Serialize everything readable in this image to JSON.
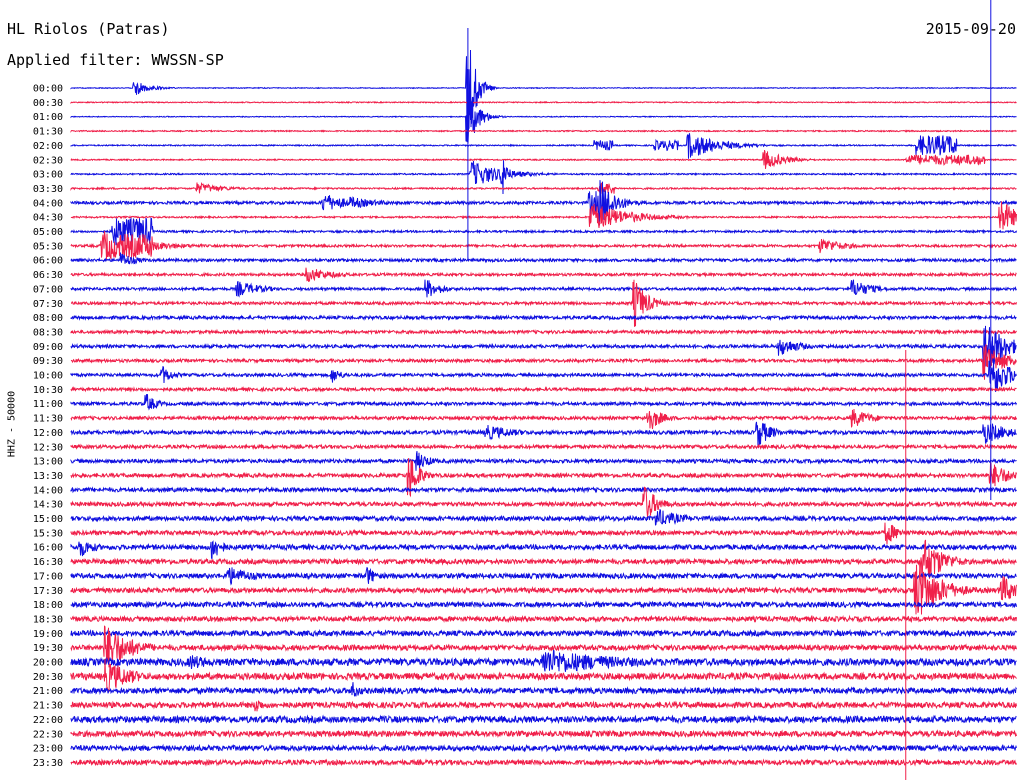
{
  "header": {
    "station": "HL Riolos (Patras)",
    "filter": "Applied filter: WWSSN-SP",
    "date": "2015-09-20"
  },
  "colors": {
    "even_trace": "#1010e0",
    "odd_trace": "#f0204a"
  },
  "chart_data": {
    "type": "line",
    "title": "HL Riolos (Patras)",
    "subtitle": "Applied filter: WWSSN-SP",
    "date": "2015-09-20",
    "ylabel": "HHZ - 50000",
    "xlabel": "",
    "grid": false,
    "legend": "none",
    "row_labels": [
      "00:00",
      "00:30",
      "01:00",
      "01:30",
      "02:00",
      "02:30",
      "03:00",
      "03:30",
      "04:00",
      "04:30",
      "05:00",
      "05:30",
      "06:00",
      "06:30",
      "07:00",
      "07:30",
      "08:00",
      "08:30",
      "09:00",
      "09:30",
      "10:00",
      "10:30",
      "11:00",
      "11:30",
      "12:00",
      "12:30",
      "13:00",
      "13:30",
      "14:00",
      "14:30",
      "15:00",
      "15:30",
      "16:00",
      "16:30",
      "17:00",
      "17:30",
      "18:00",
      "18:30",
      "19:00",
      "19:30",
      "20:00",
      "20:30",
      "21:00",
      "21:30",
      "22:00",
      "22:30",
      "23:00",
      "23:30"
    ],
    "row_minutes": 30,
    "noise_level": [
      0.4,
      0.5,
      0.4,
      0.6,
      0.6,
      0.6,
      0.7,
      0.8,
      1.4,
      0.8,
      1.0,
      1.2,
      1.4,
      1.3,
      1.3,
      1.4,
      1.6,
      1.5,
      1.6,
      1.5,
      1.5,
      1.5,
      1.6,
      1.6,
      1.8,
      1.7,
      1.8,
      1.9,
      2.0,
      2.0,
      2.2,
      2.2,
      2.4,
      2.4,
      2.4,
      2.4,
      2.5,
      2.4,
      2.6,
      2.6,
      3.5,
      3.2,
      2.8,
      2.8,
      3.2,
      2.8,
      2.6,
      2.4
    ],
    "events": [
      {
        "row": 0,
        "minute": 2.0,
        "amp": 8,
        "dur": 0.6
      },
      {
        "row": 0,
        "minute": 12.6,
        "amp": 60,
        "dur": 0.3
      },
      {
        "row": 2,
        "minute": 12.6,
        "amp": 30,
        "dur": 0.4
      },
      {
        "row": 4,
        "minute": 19.6,
        "amp": 14,
        "dur": 1.2
      },
      {
        "row": 5,
        "minute": 22.0,
        "amp": 10,
        "dur": 0.8
      },
      {
        "row": 6,
        "minute": 12.7,
        "amp": 14,
        "dur": 1.2
      },
      {
        "row": 6,
        "minute": 13.7,
        "amp": 22,
        "dur": 0.2
      },
      {
        "row": 7,
        "minute": 4.0,
        "amp": 6,
        "dur": 1.0
      },
      {
        "row": 8,
        "minute": 8.0,
        "amp": 10,
        "dur": 1.0
      },
      {
        "row": 8,
        "minute": 8.9,
        "amp": 6,
        "dur": 1.2
      },
      {
        "row": 8,
        "minute": 16.8,
        "amp": 25,
        "dur": 0.6
      },
      {
        "row": 9,
        "minute": 16.5,
        "amp": 15,
        "dur": 1.5
      },
      {
        "row": 9,
        "minute": 29.5,
        "amp": 20,
        "dur": 0.6
      },
      {
        "row": 11,
        "minute": 1.0,
        "amp": 16,
        "dur": 1.6
      },
      {
        "row": 11,
        "minute": 23.8,
        "amp": 8,
        "dur": 1.0
      },
      {
        "row": 12,
        "minute": 1.6,
        "amp": 8,
        "dur": 0.6
      },
      {
        "row": 13,
        "minute": 7.5,
        "amp": 8,
        "dur": 1.0
      },
      {
        "row": 14,
        "minute": 5.3,
        "amp": 8,
        "dur": 1.0
      },
      {
        "row": 14,
        "minute": 11.3,
        "amp": 10,
        "dur": 0.6
      },
      {
        "row": 14,
        "minute": 24.8,
        "amp": 10,
        "dur": 0.8
      },
      {
        "row": 15,
        "minute": 17.9,
        "amp": 24,
        "dur": 0.5
      },
      {
        "row": 18,
        "minute": 22.5,
        "amp": 10,
        "dur": 0.8
      },
      {
        "row": 18,
        "minute": 29.0,
        "amp": 30,
        "dur": 0.8
      },
      {
        "row": 19,
        "minute": 29.0,
        "amp": 20,
        "dur": 0.8
      },
      {
        "row": 20,
        "minute": 2.9,
        "amp": 10,
        "dur": 0.4
      },
      {
        "row": 20,
        "minute": 8.3,
        "amp": 8,
        "dur": 0.4
      },
      {
        "row": 20,
        "minute": 29.2,
        "amp": 22,
        "dur": 0.8
      },
      {
        "row": 22,
        "minute": 2.4,
        "amp": 10,
        "dur": 0.4
      },
      {
        "row": 23,
        "minute": 18.3,
        "amp": 16,
        "dur": 0.5
      },
      {
        "row": 23,
        "minute": 24.8,
        "amp": 10,
        "dur": 0.8
      },
      {
        "row": 24,
        "minute": 13.2,
        "amp": 8,
        "dur": 1.2
      },
      {
        "row": 24,
        "minute": 21.8,
        "amp": 16,
        "dur": 0.5
      },
      {
        "row": 24,
        "minute": 29.0,
        "amp": 12,
        "dur": 1.0
      },
      {
        "row": 26,
        "minute": 11.0,
        "amp": 10,
        "dur": 0.5
      },
      {
        "row": 27,
        "minute": 10.7,
        "amp": 28,
        "dur": 0.4
      },
      {
        "row": 27,
        "minute": 29.2,
        "amp": 14,
        "dur": 0.8
      },
      {
        "row": 29,
        "minute": 18.2,
        "amp": 20,
        "dur": 0.5
      },
      {
        "row": 30,
        "minute": 18.6,
        "amp": 10,
        "dur": 1.0
      },
      {
        "row": 31,
        "minute": 25.9,
        "amp": 12,
        "dur": 0.5
      },
      {
        "row": 32,
        "minute": 0.3,
        "amp": 10,
        "dur": 0.6
      },
      {
        "row": 32,
        "minute": 4.5,
        "amp": 14,
        "dur": 0.4
      },
      {
        "row": 33,
        "minute": 27.0,
        "amp": 28,
        "dur": 0.8
      },
      {
        "row": 34,
        "minute": 5.0,
        "amp": 10,
        "dur": 1.0
      },
      {
        "row": 34,
        "minute": 9.4,
        "amp": 10,
        "dur": 0.4
      },
      {
        "row": 35,
        "minute": 26.8,
        "amp": 32,
        "dur": 1.0
      },
      {
        "row": 35,
        "minute": 29.5,
        "amp": 18,
        "dur": 0.6
      },
      {
        "row": 39,
        "minute": 1.1,
        "amp": 24,
        "dur": 1.0
      },
      {
        "row": 40,
        "minute": 3.8,
        "amp": 8,
        "dur": 1.0
      },
      {
        "row": 40,
        "minute": 15.0,
        "amp": 14,
        "dur": 3.0
      },
      {
        "row": 41,
        "minute": 1.1,
        "amp": 18,
        "dur": 1.0
      },
      {
        "row": 42,
        "minute": 8.9,
        "amp": 10,
        "dur": 0.4
      },
      {
        "row": 43,
        "minute": 5.9,
        "amp": 8,
        "dur": 0.3
      }
    ],
    "swarms": [
      {
        "row": 4,
        "from": 16.6,
        "to": 17.2,
        "level": 5
      },
      {
        "row": 4,
        "from": 18.5,
        "to": 19.3,
        "level": 5
      },
      {
        "row": 4,
        "from": 26.8,
        "to": 28.1,
        "level": 10
      },
      {
        "row": 8,
        "from": 16.4,
        "to": 16.9,
        "level": 12
      },
      {
        "row": 7,
        "from": 16.7,
        "to": 17.3,
        "level": 6
      },
      {
        "row": 5,
        "from": 26.5,
        "to": 29.0,
        "level": 5
      },
      {
        "row": 10,
        "from": 1.3,
        "to": 2.6,
        "level": 14
      },
      {
        "row": 11,
        "from": 1.3,
        "to": 2.6,
        "level": 12
      }
    ],
    "teleseism": {
      "row": 20,
      "minute": 28.0,
      "rows_covered": [
        18,
        19,
        20,
        21,
        22,
        23,
        24,
        25,
        26,
        27,
        28
      ],
      "amp": 16
    }
  }
}
